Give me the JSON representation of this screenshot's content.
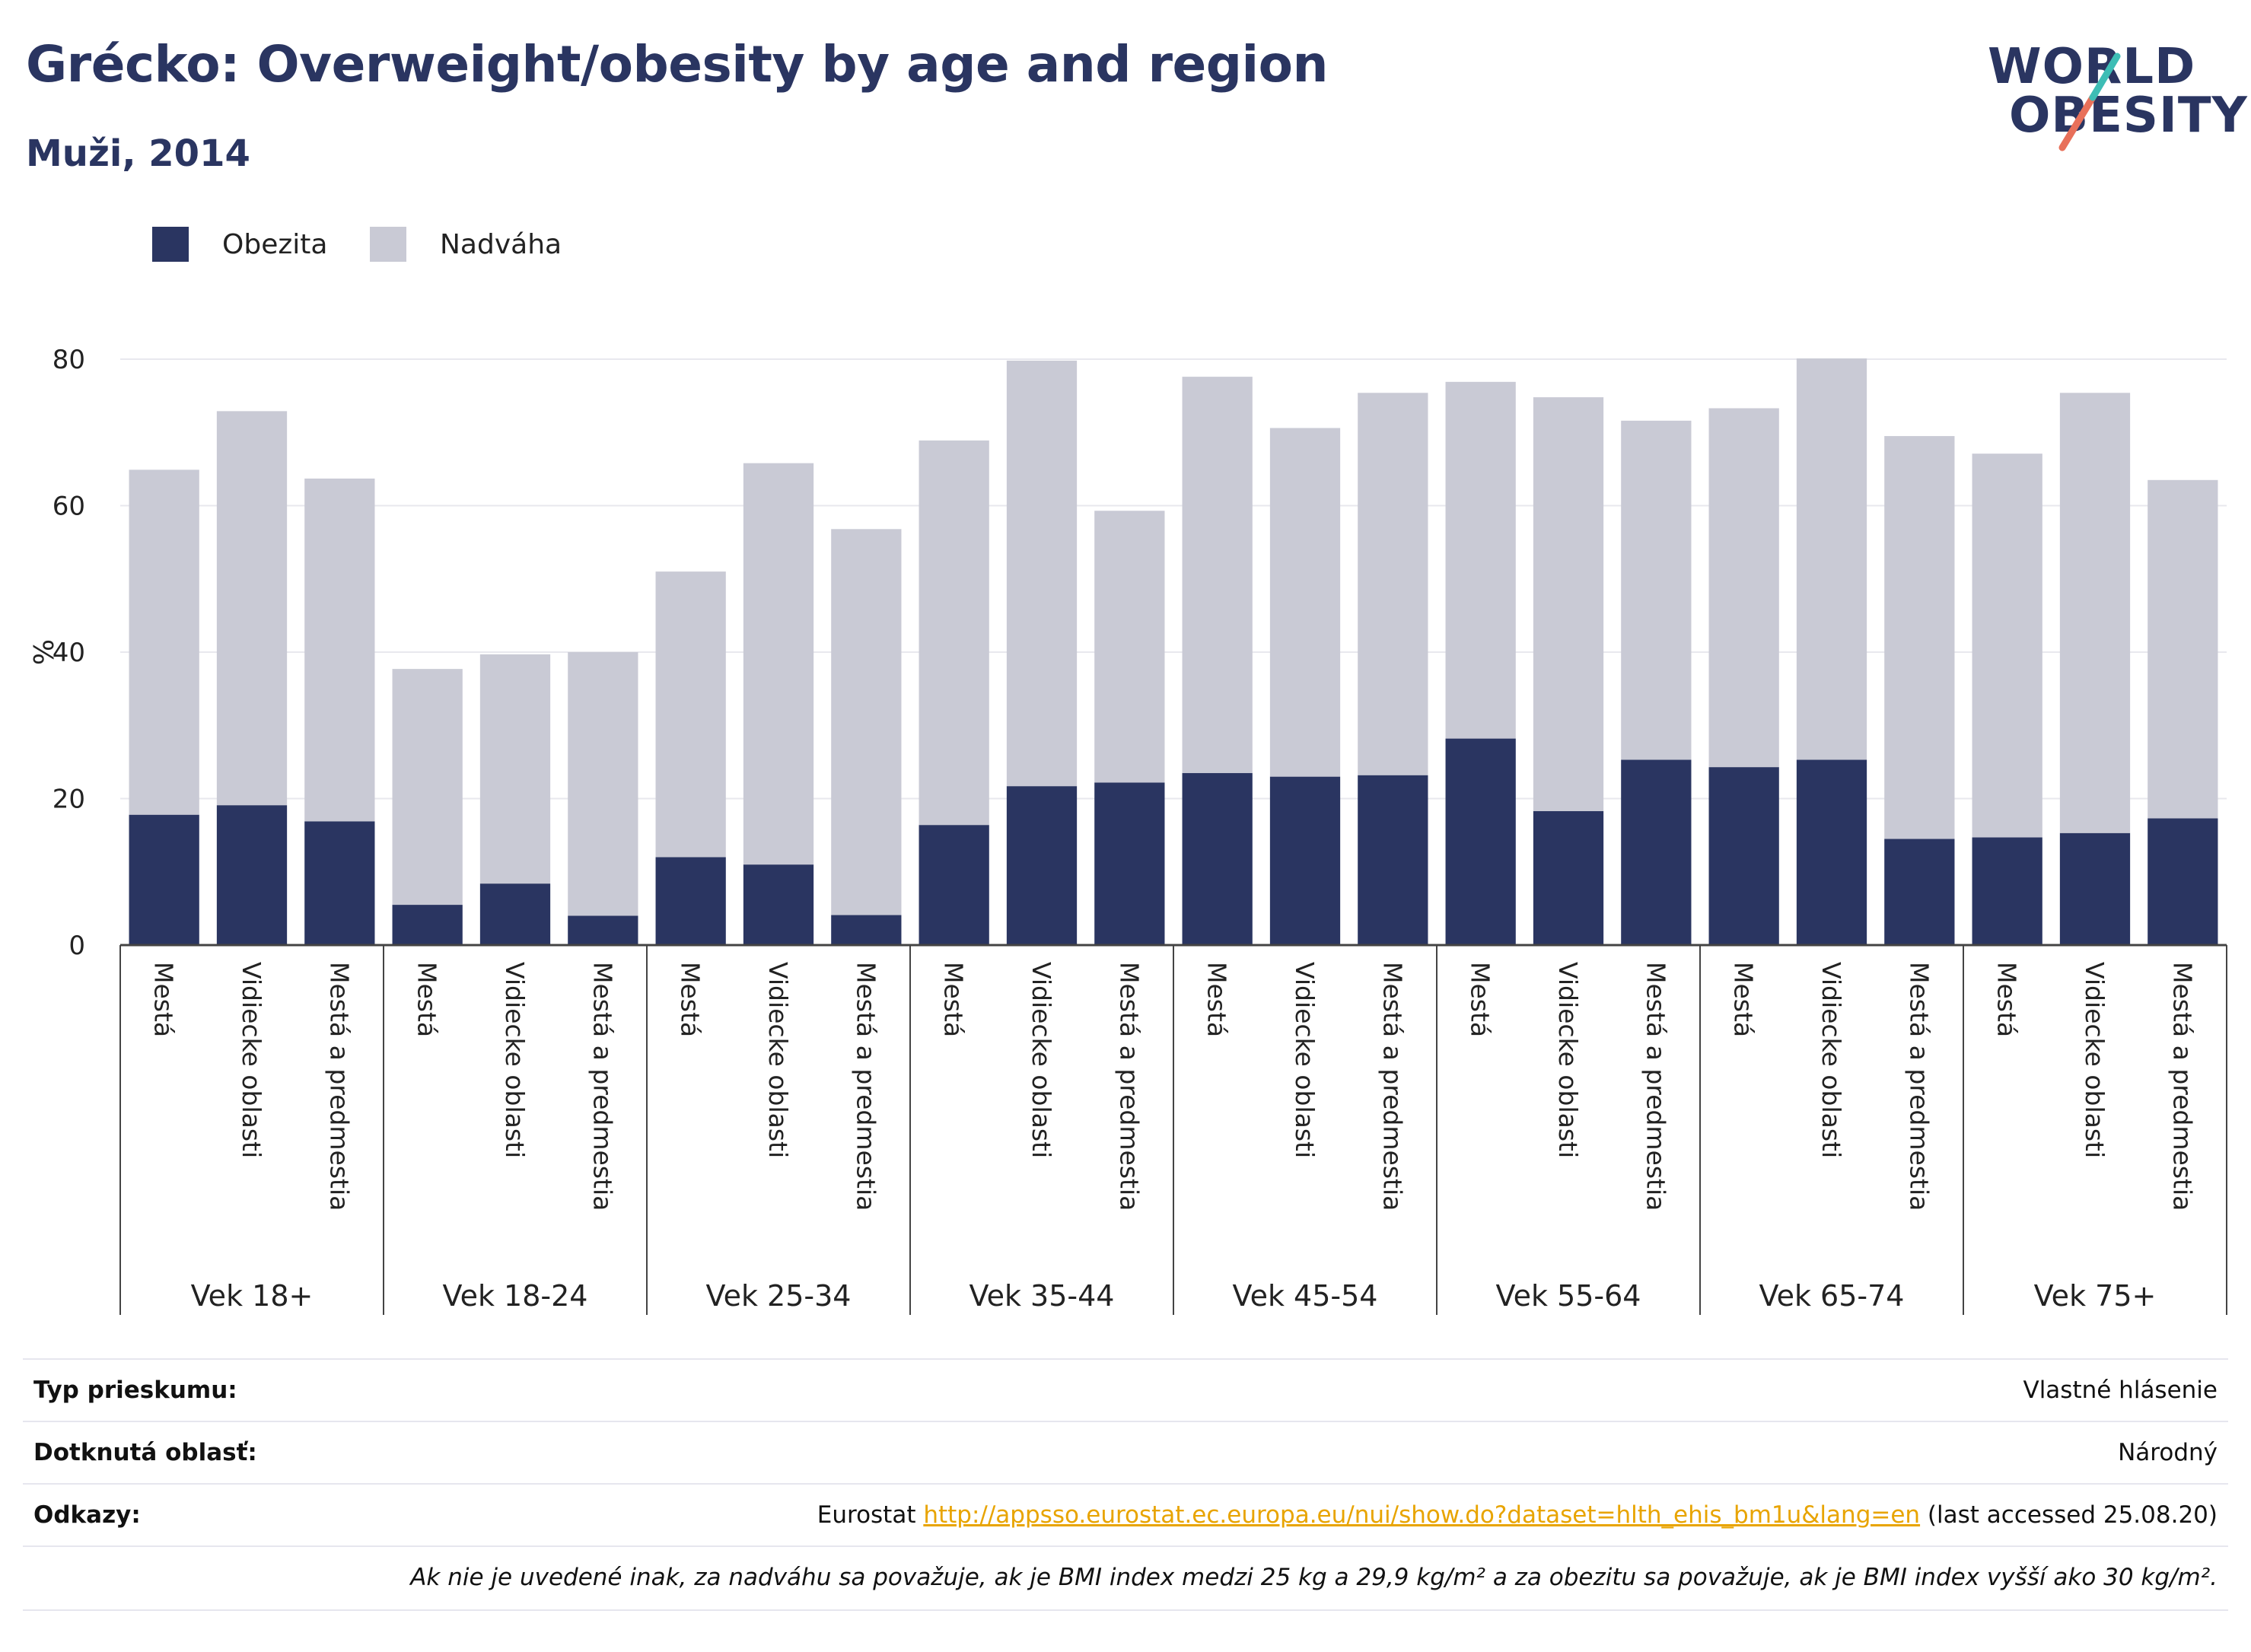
{
  "header": {
    "title": "Grécko: Overweight/obesity by age and region",
    "subtitle": "Muži, 2014"
  },
  "logo": {
    "line1": "WORLD",
    "line2": "OBESITY"
  },
  "chart_data": {
    "type": "bar",
    "stacked": true,
    "ylabel": "%",
    "ylim": [
      0,
      80
    ],
    "yticks": [
      0,
      20,
      40,
      60,
      80
    ],
    "grid": true,
    "legend_position": "top-left",
    "groups": [
      {
        "label": "Vek 18+",
        "categories": [
          "Mestá",
          "Vidiecke oblasti",
          "Mestá a predmestia"
        ]
      },
      {
        "label": "Vek 18-24",
        "categories": [
          "Mestá",
          "Vidiecke oblasti",
          "Mestá a predmestia"
        ]
      },
      {
        "label": "Vek 25-34",
        "categories": [
          "Mestá",
          "Vidiecke oblasti",
          "Mestá a predmestia"
        ]
      },
      {
        "label": "Vek 35-44",
        "categories": [
          "Mestá",
          "Vidiecke oblasti",
          "Mestá a predmestia"
        ]
      },
      {
        "label": "Vek 45-54",
        "categories": [
          "Mestá",
          "Vidiecke oblasti",
          "Mestá a predmestia"
        ]
      },
      {
        "label": "Vek 55-64",
        "categories": [
          "Mestá",
          "Vidiecke oblasti",
          "Mestá a predmestia"
        ]
      },
      {
        "label": "Vek 65-74",
        "categories": [
          "Mestá",
          "Vidiecke oblasti",
          "Mestá a predmestia"
        ]
      },
      {
        "label": "Vek 75+",
        "categories": [
          "Mestá",
          "Vidiecke oblasti",
          "Mestá a predmestia"
        ]
      }
    ],
    "series": [
      {
        "name": "Obezita",
        "color": "#2a3561",
        "values": [
          17.8,
          19.1,
          16.9,
          5.5,
          8.4,
          4.0,
          12.0,
          11.0,
          4.1,
          16.4,
          21.7,
          22.2,
          23.5,
          23.0,
          23.2,
          28.2,
          18.3,
          25.3,
          24.3,
          25.3,
          14.5,
          14.7,
          15.3,
          17.3
        ]
      },
      {
        "name": "Nadváha",
        "color": "#c9cad5",
        "values": [
          47.1,
          53.8,
          46.8,
          32.2,
          31.3,
          36.0,
          39.0,
          54.8,
          52.7,
          52.5,
          58.1,
          37.1,
          54.1,
          47.6,
          52.2,
          48.7,
          56.5,
          46.3,
          49.0,
          54.8,
          55.0,
          52.4,
          60.1,
          46.2
        ]
      }
    ]
  },
  "info": {
    "survey_type_label": "Typ prieskumu:",
    "survey_type_value": "Vlastné hlásenie",
    "area_label": "Dotknutá oblasť:",
    "area_value": "Národný",
    "refs_label": "Odkazy:",
    "refs_prefix": "Eurostat ",
    "refs_link": "http://appsso.eurostat.ec.europa.eu/nui/show.do?dataset=hlth_ehis_bm1u&lang=en",
    "refs_suffix": " (last accessed 25.08.20)",
    "note": "Ak nie je uvedené inak, za nadváhu sa považuje, ak je BMI index medzi 25 kg a 29,9 kg/m² a za obezitu sa považuje, ak je BMI index vyšší ako 30 kg/m²."
  }
}
